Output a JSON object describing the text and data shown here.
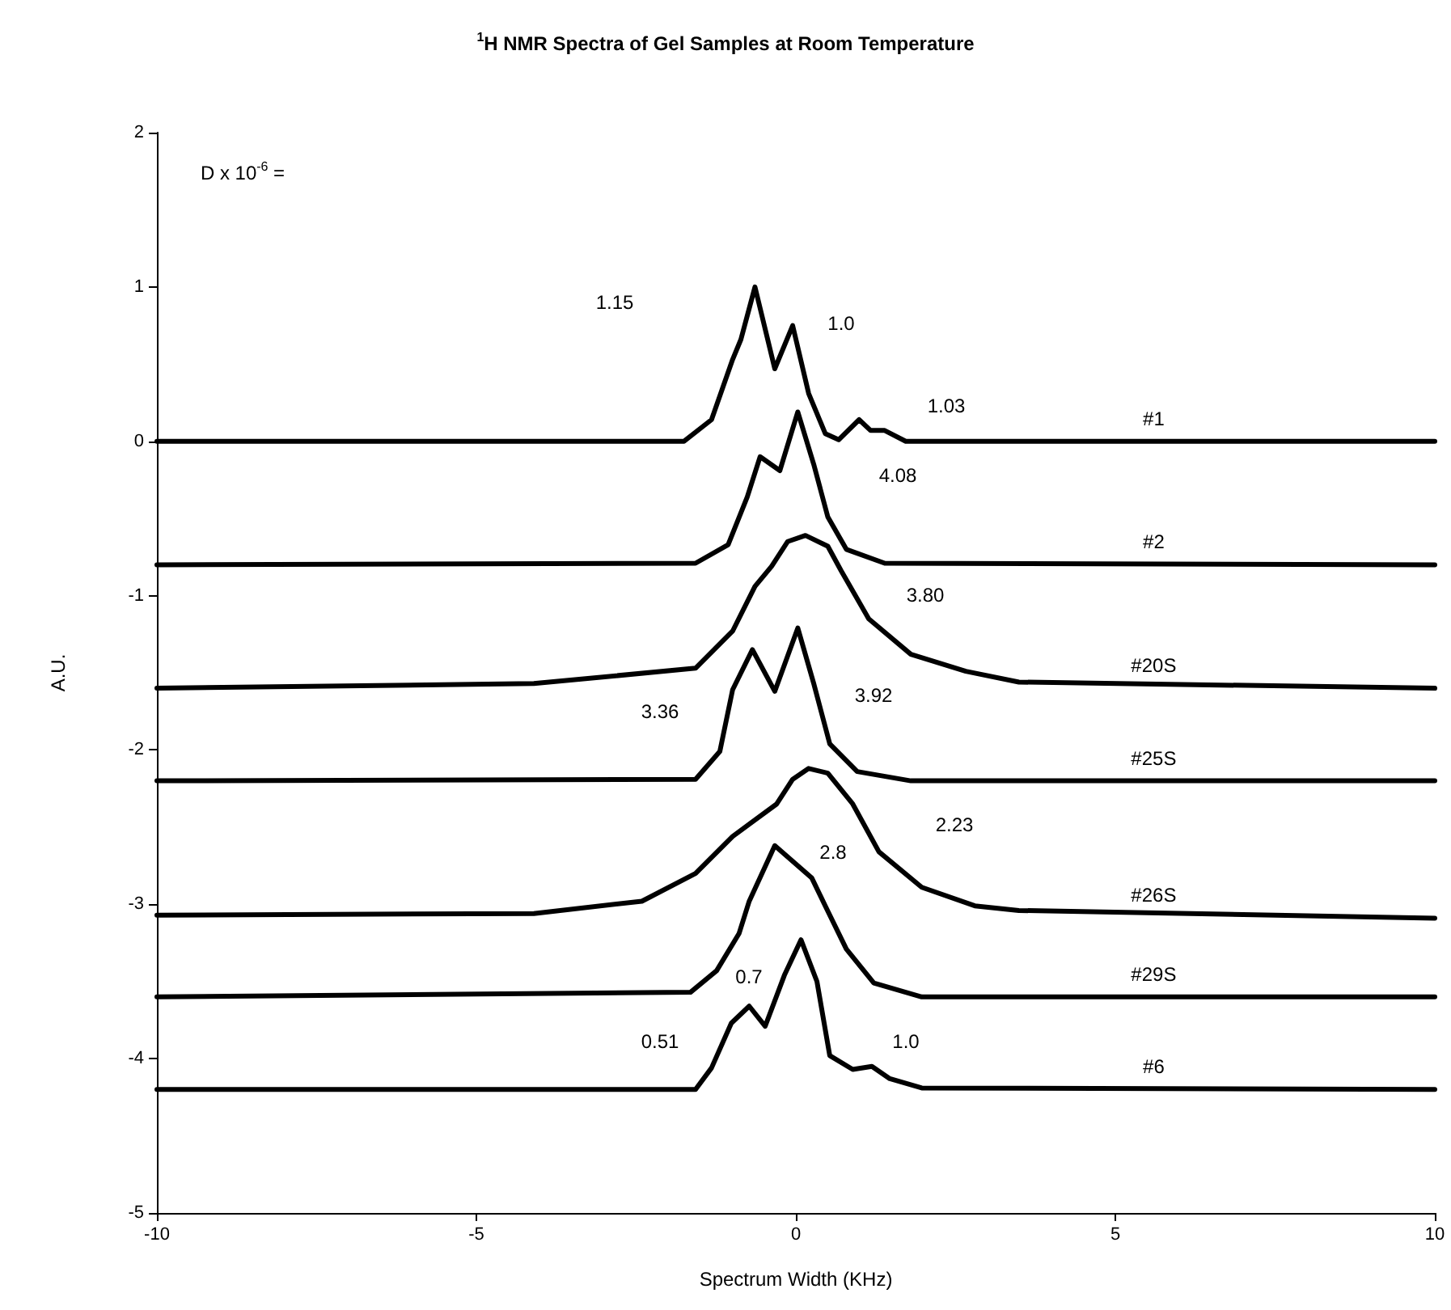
{
  "chart_data": {
    "type": "line",
    "title": "$^{1}$H NMR Spectra of Gel Samples at Room Temperature",
    "xlabel": "Spectrum Width (KHz)",
    "ylabel": "A.U.",
    "xlim": [
      -10,
      10
    ],
    "xticks": [
      -10,
      -5,
      0,
      5,
      10
    ],
    "ylim": [
      -5,
      2
    ],
    "yticks": [
      -5,
      -4,
      -3,
      -2,
      -1,
      0,
      1,
      2
    ],
    "grid": false,
    "legend": false,
    "marker": "none",
    "line_style": "solid",
    "series": [
      {
        "name": "#1",
        "color": "#000000",
        "x": [
          -10,
          -1.75,
          -1.32,
          -0.99,
          -0.86,
          -0.64,
          -0.33,
          -0.05,
          0.2,
          0.46,
          0.67,
          0.99,
          1.17,
          1.39,
          1.72,
          10
        ],
        "values": [
          0,
          0,
          0.14,
          0.53,
          0.66,
          1.0,
          0.47,
          0.75,
          0.31,
          0.05,
          0.01,
          0.14,
          0.07,
          0.07,
          0,
          0
        ]
      },
      {
        "name": "#2",
        "color": "#000000",
        "x": [
          -10,
          -1.57,
          -1.06,
          -0.76,
          -0.56,
          -0.25,
          0.03,
          0.28,
          0.5,
          0.79,
          1.39,
          10
        ],
        "values": [
          -0.8,
          -0.79,
          -0.67,
          -0.36,
          -0.1,
          -0.19,
          0.19,
          -0.15,
          -0.49,
          -0.7,
          -0.79,
          -0.8
        ]
      },
      {
        "name": "#20S",
        "color": "#000000",
        "x": [
          -10,
          -4.1,
          -1.57,
          -0.99,
          -0.64,
          -0.38,
          -0.13,
          0.15,
          0.5,
          0.71,
          1.14,
          1.8,
          2.66,
          3.49,
          10
        ],
        "values": [
          -1.6,
          -1.57,
          -1.47,
          -1.23,
          -0.94,
          -0.81,
          -0.65,
          -0.61,
          -0.68,
          -0.84,
          -1.15,
          -1.38,
          -1.49,
          -1.56,
          -1.6
        ]
      },
      {
        "name": "#25S",
        "color": "#000000",
        "x": [
          -10,
          -1.57,
          -1.19,
          -0.99,
          -0.68,
          -0.33,
          0.03,
          0.28,
          0.53,
          0.96,
          1.8,
          10
        ],
        "values": [
          -2.2,
          -2.19,
          -2.01,
          -1.61,
          -1.35,
          -1.62,
          -1.21,
          -1.57,
          -1.96,
          -2.14,
          -2.2,
          -2.2
        ]
      },
      {
        "name": "#26S",
        "color": "#000000",
        "x": [
          -10,
          -4.1,
          -2.41,
          -1.57,
          -0.99,
          -0.3,
          -0.05,
          0.2,
          0.5,
          0.89,
          1.3,
          1.97,
          2.8,
          3.49,
          10
        ],
        "values": [
          -3.07,
          -3.06,
          -2.98,
          -2.8,
          -2.56,
          -2.35,
          -2.19,
          -2.12,
          -2.15,
          -2.35,
          -2.66,
          -2.89,
          -3.01,
          -3.04,
          -3.09
        ]
      },
      {
        "name": "#29S",
        "color": "#000000",
        "x": [
          -10,
          -1.65,
          -1.24,
          -0.89,
          -0.73,
          -0.33,
          0.25,
          0.46,
          0.79,
          1.22,
          1.97,
          10
        ],
        "values": [
          -3.6,
          -3.57,
          -3.43,
          -3.19,
          -2.98,
          -2.62,
          -2.83,
          -3.01,
          -3.29,
          -3.51,
          -3.6,
          -3.6
        ]
      },
      {
        "name": "#6",
        "color": "#000000",
        "x": [
          -10,
          -1.57,
          -1.32,
          -1.01,
          -0.73,
          -0.48,
          -0.18,
          0.08,
          0.33,
          0.53,
          0.89,
          1.19,
          1.47,
          1.97,
          10
        ],
        "values": [
          -4.2,
          -4.2,
          -4.06,
          -3.77,
          -3.66,
          -3.79,
          -3.46,
          -3.23,
          -3.5,
          -3.98,
          -4.07,
          -4.05,
          -4.13,
          -4.19,
          -4.2
        ]
      }
    ],
    "annotations": [
      "D x 10$^{-6}$ =",
      "1.15",
      "1.0",
      "1.03",
      "4.08",
      "3.80",
      "3.36",
      "3.92",
      "2.23",
      "2.8",
      "0.7",
      "0.51",
      "1.0"
    ]
  }
}
